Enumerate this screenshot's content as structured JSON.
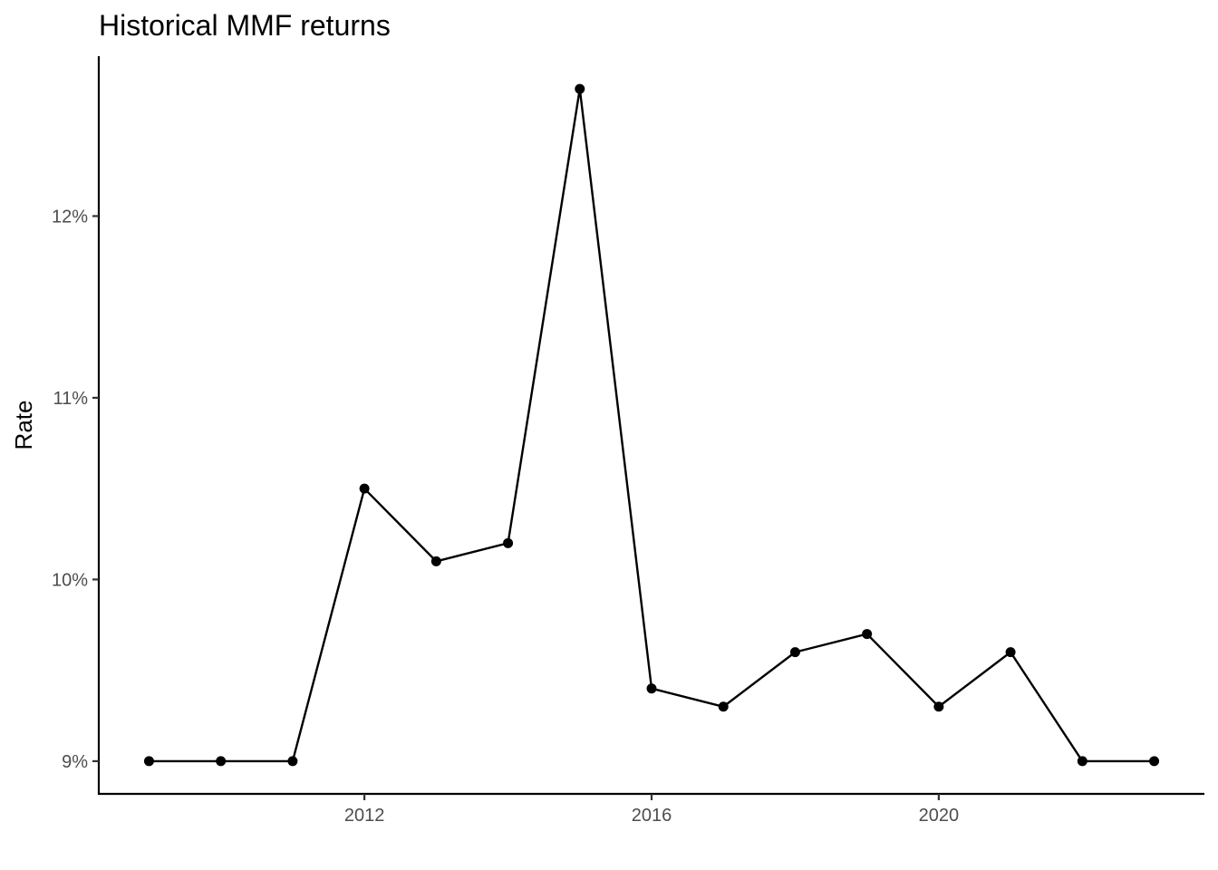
{
  "chart_data": {
    "type": "line",
    "title": "Historical MMF returns",
    "xlabel": "",
    "ylabel": "Rate",
    "x": [
      2009,
      2010,
      2011,
      2012,
      2013,
      2014,
      2015,
      2016,
      2017,
      2018,
      2019,
      2020,
      2021,
      2022,
      2023
    ],
    "series": [
      {
        "values": [
          9.0,
          9.0,
          9.0,
          10.5,
          10.1,
          10.2,
          12.7,
          9.4,
          9.3,
          9.6,
          9.7,
          9.3,
          9.6,
          9.0,
          9.0
        ]
      }
    ],
    "x_ticks": [
      2012,
      2016,
      2020
    ],
    "x_tick_labels": [
      "2012",
      "2016",
      "2020"
    ],
    "y_ticks": [
      9,
      10,
      11,
      12
    ],
    "y_tick_labels": [
      "9%",
      "10%",
      "11%",
      "12%"
    ],
    "xlim": [
      2008.3,
      2023.7
    ],
    "ylim": [
      8.82,
      12.88
    ],
    "grid": false,
    "legend": "none",
    "colors": {
      "line": "#000000",
      "points": "#000000",
      "axis": "#000000",
      "tick_labels": "#4d4d4d"
    }
  }
}
